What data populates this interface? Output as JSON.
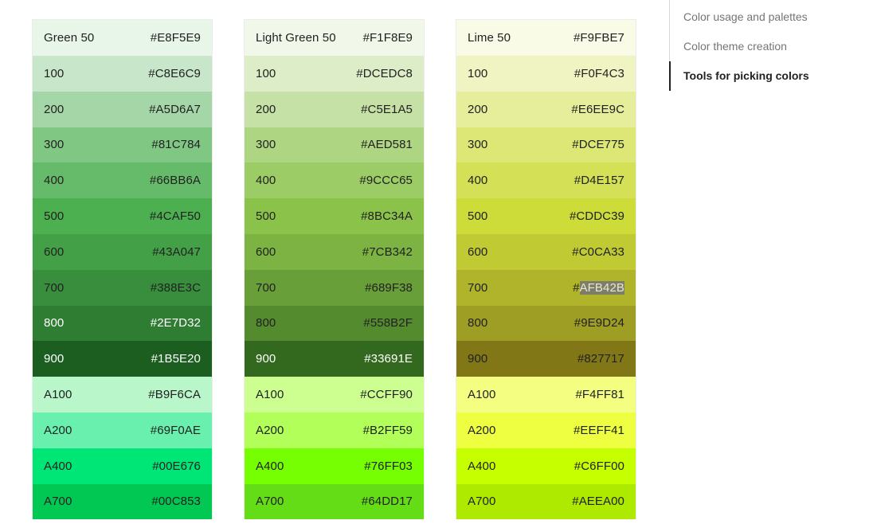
{
  "palettes": [
    {
      "swatches": [
        {
          "name": "Green 50",
          "hex": "#E8F5E9",
          "bg": "#E8F5E9",
          "fg": "#212121"
        },
        {
          "name": "100",
          "hex": "#C8E6C9",
          "bg": "#C8E6C9",
          "fg": "#212121"
        },
        {
          "name": "200",
          "hex": "#A5D6A7",
          "bg": "#A5D6A7",
          "fg": "#212121"
        },
        {
          "name": "300",
          "hex": "#81C784",
          "bg": "#81C784",
          "fg": "#212121"
        },
        {
          "name": "400",
          "hex": "#66BB6A",
          "bg": "#66BB6A",
          "fg": "#212121"
        },
        {
          "name": "500",
          "hex": "#4CAF50",
          "bg": "#4CAF50",
          "fg": "#212121"
        },
        {
          "name": "600",
          "hex": "#43A047",
          "bg": "#43A047",
          "fg": "#212121"
        },
        {
          "name": "700",
          "hex": "#388E3C",
          "bg": "#388E3C",
          "fg": "#212121"
        },
        {
          "name": "800",
          "hex": "#2E7D32",
          "bg": "#2E7D32",
          "fg": "#ffffff"
        },
        {
          "name": "900",
          "hex": "#1B5E20",
          "bg": "#1B5E20",
          "fg": "#ffffff"
        },
        {
          "name": "A100",
          "hex": "#B9F6CA",
          "bg": "#B9F6CA",
          "fg": "#212121"
        },
        {
          "name": "A200",
          "hex": "#69F0AE",
          "bg": "#69F0AE",
          "fg": "#212121"
        },
        {
          "name": "A400",
          "hex": "#00E676",
          "bg": "#00E676",
          "fg": "#212121"
        },
        {
          "name": "A700",
          "hex": "#00C853",
          "bg": "#00C853",
          "fg": "#212121"
        }
      ]
    },
    {
      "swatches": [
        {
          "name": "Light Green 50",
          "hex": "#F1F8E9",
          "bg": "#F1F8E9",
          "fg": "#212121"
        },
        {
          "name": "100",
          "hex": "#DCEDC8",
          "bg": "#DCEDC8",
          "fg": "#212121"
        },
        {
          "name": "200",
          "hex": "#C5E1A5",
          "bg": "#C5E1A5",
          "fg": "#212121"
        },
        {
          "name": "300",
          "hex": "#AED581",
          "bg": "#AED581",
          "fg": "#212121"
        },
        {
          "name": "400",
          "hex": "#9CCC65",
          "bg": "#9CCC65",
          "fg": "#212121"
        },
        {
          "name": "500",
          "hex": "#8BC34A",
          "bg": "#8BC34A",
          "fg": "#212121"
        },
        {
          "name": "600",
          "hex": "#7CB342",
          "bg": "#7CB342",
          "fg": "#212121"
        },
        {
          "name": "700",
          "hex": "#689F38",
          "bg": "#689F38",
          "fg": "#212121"
        },
        {
          "name": "800",
          "hex": "#558B2F",
          "bg": "#558B2F",
          "fg": "#212121"
        },
        {
          "name": "900",
          "hex": "#33691E",
          "bg": "#33691E",
          "fg": "#ffffff"
        },
        {
          "name": "A100",
          "hex": "#CCFF90",
          "bg": "#CCFF90",
          "fg": "#212121"
        },
        {
          "name": "A200",
          "hex": "#B2FF59",
          "bg": "#B2FF59",
          "fg": "#212121"
        },
        {
          "name": "A400",
          "hex": "#76FF03",
          "bg": "#76FF03",
          "fg": "#212121"
        },
        {
          "name": "A700",
          "hex": "#64DD17",
          "bg": "#64DD17",
          "fg": "#212121"
        }
      ]
    },
    {
      "swatches": [
        {
          "name": "Lime 50",
          "hex": "#F9FBE7",
          "bg": "#F9FBE7",
          "fg": "#212121"
        },
        {
          "name": "100",
          "hex": "#F0F4C3",
          "bg": "#F0F4C3",
          "fg": "#212121"
        },
        {
          "name": "200",
          "hex": "#E6EE9C",
          "bg": "#E6EE9C",
          "fg": "#212121"
        },
        {
          "name": "300",
          "hex": "#DCE775",
          "bg": "#DCE775",
          "fg": "#212121"
        },
        {
          "name": "400",
          "hex": "#D4E157",
          "bg": "#D4E157",
          "fg": "#212121"
        },
        {
          "name": "500",
          "hex": "#CDDC39",
          "bg": "#CDDC39",
          "fg": "#212121"
        },
        {
          "name": "600",
          "hex": "#C0CA33",
          "bg": "#C0CA33",
          "fg": "#212121"
        },
        {
          "name": "700",
          "hex": "#AFB42B",
          "bg": "#AFB42B",
          "fg": "#212121",
          "selected": true
        },
        {
          "name": "800",
          "hex": "#9E9D24",
          "bg": "#9E9D24",
          "fg": "#212121"
        },
        {
          "name": "900",
          "hex": "#827717",
          "bg": "#827717",
          "fg": "#212121"
        },
        {
          "name": "A100",
          "hex": "#F4FF81",
          "bg": "#F4FF81",
          "fg": "#212121"
        },
        {
          "name": "A200",
          "hex": "#EEFF41",
          "bg": "#EEFF41",
          "fg": "#212121"
        },
        {
          "name": "A400",
          "hex": "#C6FF00",
          "bg": "#C6FF00",
          "fg": "#212121"
        },
        {
          "name": "A700",
          "hex": "#AEEA00",
          "bg": "#AEEA00",
          "fg": "#212121"
        }
      ]
    }
  ],
  "toc": {
    "items": [
      {
        "label": "Color usage and palettes",
        "active": false
      },
      {
        "label": "Color theme creation",
        "active": false
      },
      {
        "label": "Tools for picking colors",
        "active": true
      }
    ]
  }
}
